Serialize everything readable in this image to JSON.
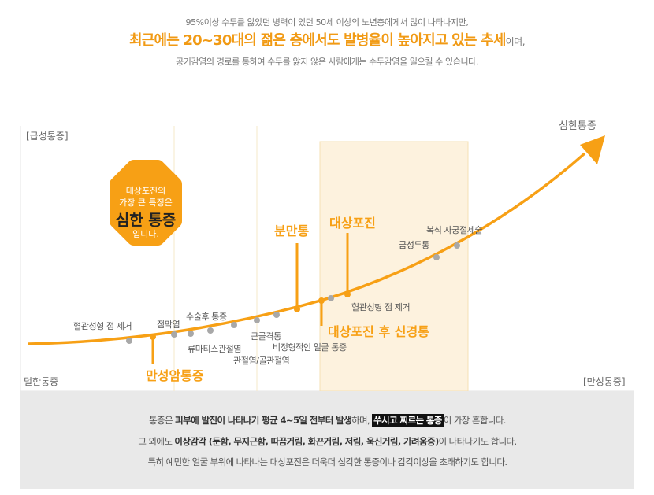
{
  "intro": {
    "line1": "95%이상 수두를 앓았던 병력이 있던 50세 이상의 노년층에게서 많이 나타나지만,",
    "line2_main": "최근에는 20~30대의 젊은 층에서도 발병율이 높아지고 있는 추세",
    "line2_suffix": "이며,",
    "line3": "공기감염의 경로를 통하여 수두를 앓지 않은 사람에게는 수두감염을 일으킬 수 있습니다."
  },
  "axis": {
    "top_left": "[급성통증]",
    "top_right": "심한통증",
    "bottom_left": "덜한통증",
    "bottom_right": "[만성통증]"
  },
  "badge": {
    "line1": "대상포진의",
    "line2": "가장 큰 특징은",
    "line3": "심한 통증",
    "line4": "입니다."
  },
  "markers": {
    "chronic": "만성암통증",
    "labor": "분만통",
    "shingles": "대상포진",
    "post_shingles": "대상포진 후 신경통"
  },
  "points": [
    "혈관성형 점 제거",
    "점막염",
    "수술후 통증",
    "류마티스관절염",
    "관절염/골관절염",
    "근골격통",
    "비정형적인 얼굴 통증",
    "혈관성형 점 제거",
    "급성두통",
    "복식 자궁절제술"
  ],
  "notes": {
    "l1_a": "통증은 ",
    "l1_b": "피부에 발진이 나타나기 평균 4~5일 전부터 발생",
    "l1_c": "하며, ",
    "l1_d": "쑤시고 찌르는 통증",
    "l1_e": "이 가장 흔합니다.",
    "l2_a": "그 외에도 ",
    "l2_b": "이상감각 (둔함, 무지근함, 따끔거림, 화끈거림, 저림, 욱신거림, 가려움증)",
    "l2_c": "이 나타나기도 합니다.",
    "l3": "특히 예민한 얼굴 부위에 나타나는 대상포진은 더욱더 심각한 통증이나 감각이상을 초래하기도 합니다."
  },
  "colors": {
    "accent": "#f7a015",
    "point": "#a8a8a8",
    "band": "#fdf2de",
    "note_bg": "#e9e9e9"
  }
}
